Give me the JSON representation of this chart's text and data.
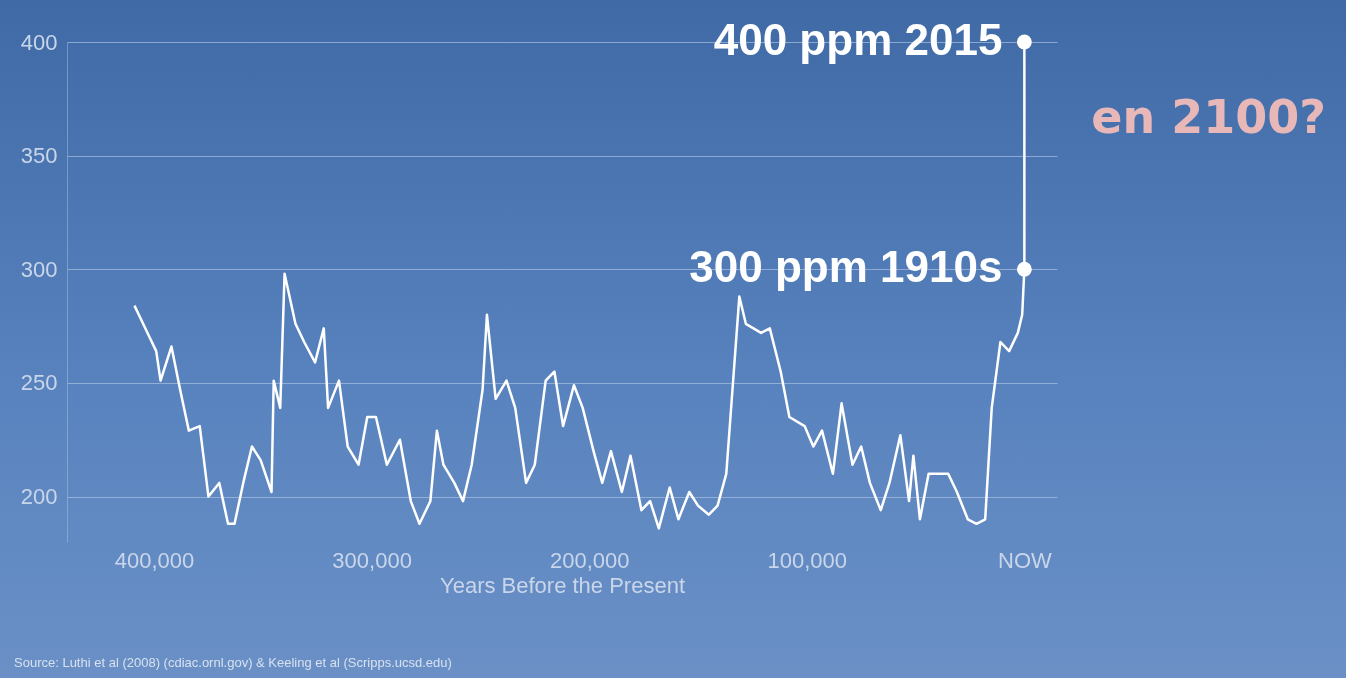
{
  "chart_data": {
    "type": "line",
    "xlabel": "Years Before the Present",
    "xlim": [
      440000,
      -15000
    ],
    "ylim": [
      180,
      400
    ],
    "xticks": [
      {
        "value": 400000,
        "label": "400,000"
      },
      {
        "value": 300000,
        "label": "300,000"
      },
      {
        "value": 200000,
        "label": "200,000"
      },
      {
        "value": 100000,
        "label": "100,000"
      },
      {
        "value": 0,
        "label": "NOW"
      }
    ],
    "yticks": [
      200,
      250,
      300,
      350,
      400
    ],
    "grid": "y",
    "series": [
      {
        "color": "#ffffff",
        "marker": "none",
        "x": [
          409000,
          406000,
          402000,
          399000,
          397000,
          392000,
          388000,
          384000,
          379000,
          375000,
          370000,
          366000,
          363000,
          359000,
          355000,
          351000,
          346000,
          345000,
          342000,
          340000,
          335000,
          331000,
          326000,
          322000,
          320000,
          315000,
          311000,
          306000,
          302000,
          298000,
          293000,
          287000,
          282000,
          278000,
          273000,
          270000,
          267000,
          262000,
          258000,
          254000,
          249000,
          247000,
          243000,
          238000,
          234000,
          229000,
          225000,
          220000,
          216000,
          212000,
          207000,
          203000,
          198000,
          194000,
          190000,
          185000,
          181000,
          176000,
          172000,
          168000,
          163000,
          159000,
          154000,
          150000,
          145000,
          141000,
          137000,
          131000,
          128000,
          121000,
          117000,
          112000,
          108000,
          101000,
          97000,
          93000,
          88000,
          84000,
          79000,
          75000,
          71000,
          66000,
          62000,
          57000,
          53000,
          51000,
          48000,
          44000,
          35000,
          31000,
          26000,
          22000,
          18000,
          15000,
          11000,
          7000,
          3000,
          1000,
          0,
          0
        ],
        "values": [
          284,
          278,
          270,
          264,
          251,
          266,
          247,
          229,
          231,
          200,
          206,
          188,
          188,
          206,
          222,
          216,
          202,
          251,
          239,
          298,
          276,
          268,
          259,
          274,
          239,
          251,
          222,
          214,
          235,
          235,
          214,
          225,
          198,
          188,
          198,
          229,
          214,
          206,
          198,
          214,
          247,
          280,
          243,
          251,
          239,
          206,
          214,
          251,
          255,
          231,
          249,
          239,
          220,
          206,
          220,
          202,
          218,
          194,
          198,
          186,
          204,
          190,
          202,
          196,
          192,
          196,
          210,
          288,
          276,
          272,
          274,
          255,
          235,
          231,
          222,
          229,
          210,
          241,
          214,
          222,
          206,
          194,
          206,
          227,
          198,
          218,
          190,
          210,
          210,
          202,
          190,
          188,
          190,
          239,
          268,
          264,
          272,
          280,
          300,
          400
        ]
      },
      {
        "type": "scatter",
        "color": "#ffffff",
        "marker": "circle",
        "x": [
          0,
          0
        ],
        "values": [
          300,
          400
        ]
      }
    ],
    "annotations": [
      {
        "text": "400 ppm 2015",
        "x": 0,
        "y": 400
      },
      {
        "text": "300 ppm 1910s",
        "x": 0,
        "y": 300
      },
      "en 2100?",
      "Source:  Luthi et al (2008) (cdiac.ornl.gov) & Keeling et al (Scripps.ucsd.edu)"
    ]
  }
}
